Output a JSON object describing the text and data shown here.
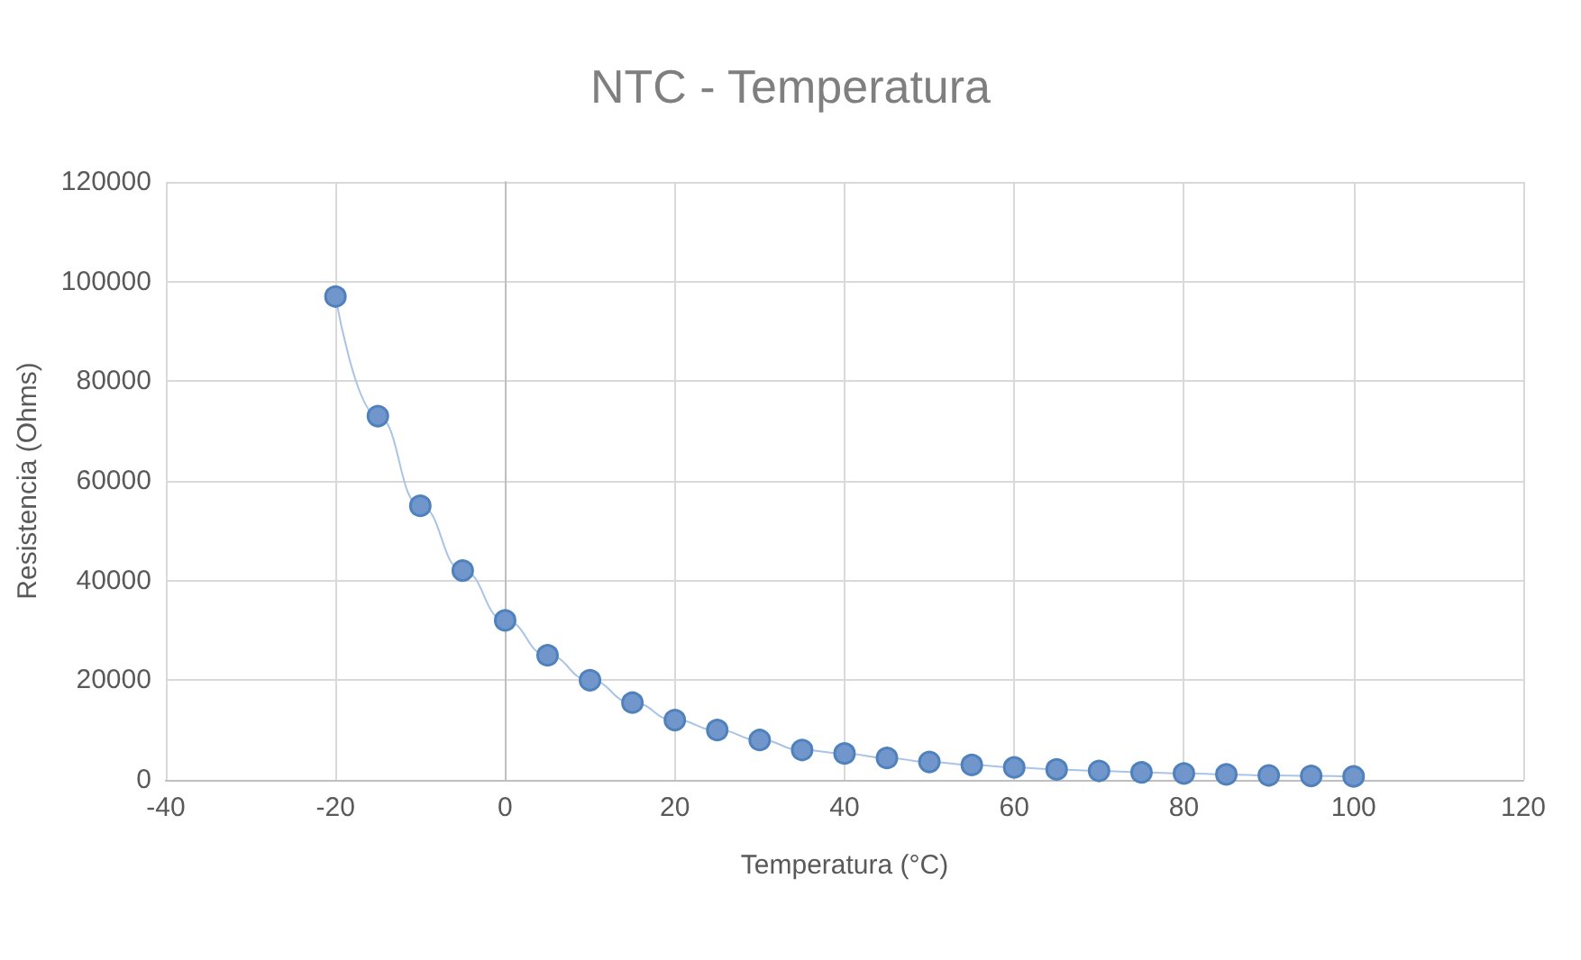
{
  "chart_data": {
    "type": "line",
    "title": "NTC - Temperatura",
    "xlabel": "Temperatura (°C)",
    "ylabel": "Resistencia (Ohms)",
    "x": [
      -20,
      -15,
      -10,
      -5,
      0,
      5,
      10,
      15,
      20,
      25,
      30,
      35,
      40,
      45,
      50,
      55,
      60,
      65,
      70,
      75,
      80,
      85,
      90,
      95,
      100
    ],
    "series": [
      {
        "color": "#4f81bd",
        "line_style": "solid",
        "values": [
          97000,
          73000,
          55000,
          42000,
          32000,
          25000,
          20000,
          15500,
          12000,
          10000,
          8000,
          6000,
          5300,
          4400,
          3600,
          3000,
          2500,
          2100,
          1800,
          1500,
          1300,
          1100,
          900,
          800,
          700
        ]
      }
    ],
    "xlim": [
      -40,
      120
    ],
    "xticks": [
      -40,
      -20,
      0,
      20,
      40,
      60,
      80,
      100,
      120
    ],
    "ylim": [
      0,
      120000
    ],
    "yticks": [
      0,
      20000,
      40000,
      60000,
      80000,
      100000,
      120000
    ],
    "grid": true,
    "marker": "circle"
  }
}
